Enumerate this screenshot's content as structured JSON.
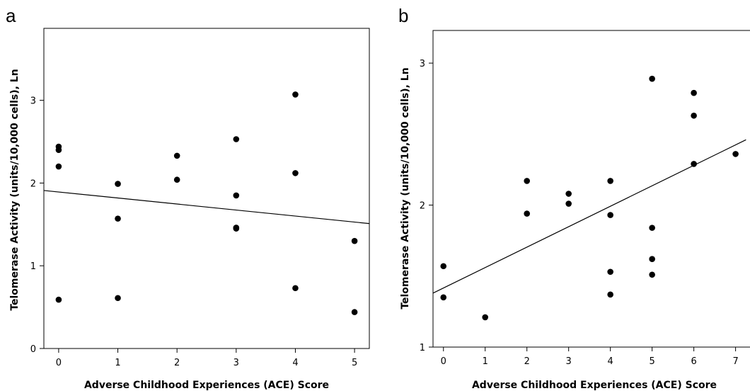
{
  "chart_data": [
    {
      "panel": "a",
      "type": "scatter",
      "xlabel": "Adverse Childhood Experiences (ACE) Score",
      "ylabel": "Telomerase Activity (units/10,000 cells), Ln",
      "xlim": [
        -0.25,
        5.25
      ],
      "ylim": [
        0,
        3.87
      ],
      "xticks": [
        0,
        1,
        2,
        3,
        4,
        5
      ],
      "yticks": [
        0,
        1,
        2,
        3
      ],
      "points": [
        {
          "x": 0,
          "y": 2.44
        },
        {
          "x": 0,
          "y": 2.4
        },
        {
          "x": 0,
          "y": 2.2
        },
        {
          "x": 0,
          "y": 0.59
        },
        {
          "x": 1,
          "y": 1.99
        },
        {
          "x": 1,
          "y": 1.57
        },
        {
          "x": 1,
          "y": 0.61
        },
        {
          "x": 2,
          "y": 2.33
        },
        {
          "x": 2,
          "y": 2.04
        },
        {
          "x": 3,
          "y": 2.53
        },
        {
          "x": 3,
          "y": 1.85
        },
        {
          "x": 3,
          "y": 1.46
        },
        {
          "x": 3,
          "y": 1.45
        },
        {
          "x": 4,
          "y": 3.07
        },
        {
          "x": 4,
          "y": 2.12
        },
        {
          "x": 4,
          "y": 0.73
        },
        {
          "x": 5,
          "y": 1.3
        },
        {
          "x": 5,
          "y": 0.44
        }
      ],
      "fit_line": {
        "x": [
          -0.25,
          5.25
        ],
        "y": [
          1.91,
          1.51
        ]
      },
      "grid": false
    },
    {
      "panel": "b",
      "type": "scatter",
      "xlabel": "Adverse Childhood Experiences (ACE) Score",
      "ylabel": "Telomerase Activity (units/10,000 cells), Ln",
      "xlim": [
        -0.25,
        7.6
      ],
      "ylim": [
        1,
        3.23
      ],
      "xticks": [
        0,
        1,
        2,
        3,
        4,
        5,
        6,
        7
      ],
      "yticks": [
        1,
        2,
        3
      ],
      "points": [
        {
          "x": 0,
          "y": 1.57
        },
        {
          "x": 0,
          "y": 1.35
        },
        {
          "x": 1,
          "y": 1.21
        },
        {
          "x": 2,
          "y": 2.17
        },
        {
          "x": 2,
          "y": 1.94
        },
        {
          "x": 3,
          "y": 2.08
        },
        {
          "x": 3,
          "y": 2.01
        },
        {
          "x": 4,
          "y": 2.17
        },
        {
          "x": 4,
          "y": 1.93
        },
        {
          "x": 4,
          "y": 1.53
        },
        {
          "x": 4,
          "y": 1.37
        },
        {
          "x": 5,
          "y": 2.89
        },
        {
          "x": 5,
          "y": 1.84
        },
        {
          "x": 5,
          "y": 1.62
        },
        {
          "x": 5,
          "y": 1.51
        },
        {
          "x": 6,
          "y": 2.79
        },
        {
          "x": 6,
          "y": 2.63
        },
        {
          "x": 6,
          "y": 2.29
        },
        {
          "x": 7,
          "y": 2.36
        }
      ],
      "fit_line": {
        "x": [
          -0.25,
          7.25
        ],
        "y": [
          1.38,
          2.46
        ]
      },
      "grid": false
    }
  ]
}
